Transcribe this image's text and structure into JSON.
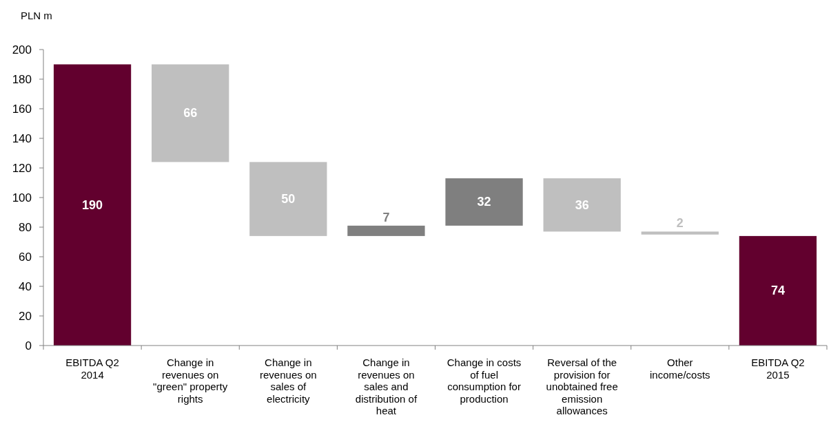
{
  "chart_data": {
    "type": "bar",
    "ylabel": "PLN m",
    "categories": [
      "EBITDA Q2 2014",
      "Change in revenues on \"green\" property rights",
      "Change in revenues on sales of electricity",
      "Change in revenues on sales and distribution of heat",
      "Change in costs of fuel consumption for production",
      "Reversal of the provision for unobtained free emission allowances",
      "Other income/costs",
      "EBITDA Q2 2015"
    ],
    "values": [
      190,
      66,
      50,
      7,
      32,
      36,
      2,
      74
    ],
    "base": [
      0,
      124,
      74,
      74,
      81,
      77,
      75,
      0
    ],
    "colors": [
      "#62002e",
      "#bfbfbf",
      "#bfbfbf",
      "#7f7f7f",
      "#7f7f7f",
      "#bfbfbf",
      "#bfbfbf",
      "#62002e"
    ],
    "data_labels": true,
    "ylim": [
      0,
      200
    ],
    "yticks": [
      0,
      20,
      40,
      60,
      80,
      100,
      120,
      140,
      160,
      180,
      200
    ],
    "grid": false
  }
}
